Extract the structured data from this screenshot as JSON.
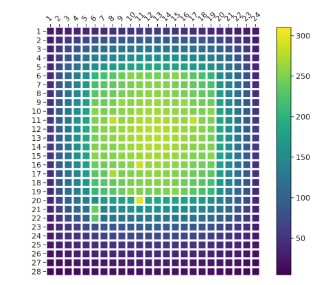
{
  "chart_data": {
    "type": "heatmap",
    "title": "",
    "xlabel": "",
    "ylabel": "",
    "x_categories": [
      "1",
      "2",
      "3",
      "4",
      "5",
      "6",
      "7",
      "8",
      "9",
      "10",
      "11",
      "12",
      "13",
      "14",
      "15",
      "16",
      "17",
      "18",
      "19",
      "20",
      "21",
      "22",
      "23",
      "24"
    ],
    "y_categories": [
      "1",
      "2",
      "3",
      "4",
      "5",
      "6",
      "7",
      "8",
      "9",
      "10",
      "11",
      "12",
      "13",
      "14",
      "15",
      "16",
      "17",
      "18",
      "19",
      "20",
      "21",
      "22",
      "23",
      "24",
      "25",
      "26",
      "27",
      "28"
    ],
    "colorscale": "viridis",
    "color_range": [
      5,
      310
    ],
    "colorbar_ticks": [
      50,
      100,
      150,
      200,
      250,
      300
    ],
    "grid_lines": "white",
    "values": [
      [
        25,
        28,
        31,
        34,
        37,
        40,
        43,
        46,
        49,
        52,
        55,
        58,
        58,
        55,
        52,
        49,
        46,
        43,
        40,
        37,
        34,
        31,
        28,
        25
      ],
      [
        28,
        45,
        55,
        63,
        73,
        82,
        87,
        90,
        92,
        94,
        95,
        96,
        96,
        95,
        94,
        92,
        90,
        87,
        82,
        73,
        63,
        55,
        45,
        28
      ],
      [
        31,
        55,
        75,
        88,
        100,
        110,
        116,
        120,
        123,
        125,
        126,
        127,
        127,
        126,
        125,
        123,
        120,
        116,
        110,
        100,
        88,
        75,
        55,
        31
      ],
      [
        34,
        63,
        88,
        108,
        120,
        135,
        142,
        148,
        152,
        155,
        157,
        158,
        158,
        157,
        155,
        152,
        148,
        142,
        135,
        120,
        108,
        88,
        63,
        34
      ],
      [
        37,
        73,
        100,
        120,
        135,
        155,
        165,
        172,
        178,
        182,
        184,
        185,
        185,
        184,
        182,
        178,
        172,
        165,
        155,
        135,
        120,
        100,
        73,
        37
      ],
      [
        40,
        82,
        110,
        135,
        155,
        205,
        220,
        230,
        240,
        255,
        250,
        245,
        245,
        250,
        255,
        240,
        230,
        220,
        205,
        155,
        135,
        110,
        82,
        40
      ],
      [
        43,
        87,
        116,
        142,
        165,
        220,
        228,
        236,
        243,
        248,
        252,
        254,
        254,
        252,
        248,
        243,
        236,
        228,
        220,
        165,
        142,
        116,
        87,
        43
      ],
      [
        46,
        90,
        120,
        148,
        172,
        230,
        236,
        241,
        247,
        251,
        255,
        258,
        258,
        255,
        251,
        247,
        241,
        236,
        230,
        172,
        148,
        120,
        90,
        46
      ],
      [
        49,
        92,
        123,
        152,
        178,
        240,
        243,
        247,
        262,
        256,
        259,
        262,
        262,
        259,
        256,
        262,
        247,
        243,
        240,
        178,
        152,
        123,
        92,
        49
      ],
      [
        52,
        94,
        125,
        155,
        182,
        255,
        248,
        251,
        256,
        260,
        265,
        267,
        267,
        265,
        260,
        256,
        251,
        248,
        255,
        182,
        155,
        125,
        94,
        52
      ],
      [
        55,
        95,
        126,
        157,
        184,
        250,
        252,
        280,
        259,
        265,
        270,
        272,
        272,
        270,
        265,
        259,
        280,
        252,
        250,
        184,
        157,
        126,
        95,
        55
      ],
      [
        58,
        96,
        127,
        158,
        185,
        245,
        254,
        258,
        262,
        267,
        272,
        275,
        275,
        272,
        267,
        262,
        258,
        254,
        245,
        185,
        158,
        127,
        96,
        58
      ],
      [
        58,
        96,
        127,
        158,
        185,
        245,
        254,
        258,
        262,
        267,
        272,
        275,
        275,
        272,
        267,
        262,
        258,
        254,
        245,
        185,
        158,
        127,
        96,
        58
      ],
      [
        55,
        95,
        126,
        157,
        184,
        250,
        252,
        255,
        259,
        265,
        270,
        272,
        272,
        270,
        265,
        259,
        255,
        252,
        250,
        184,
        157,
        126,
        95,
        55
      ],
      [
        52,
        94,
        125,
        155,
        182,
        255,
        248,
        251,
        256,
        260,
        265,
        267,
        267,
        265,
        260,
        256,
        251,
        248,
        255,
        182,
        155,
        125,
        94,
        52
      ],
      [
        49,
        92,
        123,
        152,
        178,
        240,
        243,
        247,
        252,
        256,
        285,
        262,
        262,
        259,
        256,
        252,
        247,
        243,
        240,
        178,
        152,
        123,
        92,
        49
      ],
      [
        46,
        90,
        120,
        148,
        172,
        230,
        236,
        270,
        247,
        251,
        255,
        258,
        258,
        255,
        251,
        247,
        241,
        236,
        230,
        172,
        148,
        120,
        90,
        46
      ],
      [
        43,
        87,
        116,
        142,
        165,
        220,
        228,
        236,
        243,
        248,
        252,
        254,
        254,
        252,
        248,
        243,
        236,
        228,
        220,
        165,
        142,
        116,
        87,
        43
      ],
      [
        40,
        82,
        110,
        135,
        155,
        205,
        220,
        230,
        240,
        255,
        250,
        245,
        245,
        250,
        255,
        240,
        230,
        220,
        205,
        155,
        135,
        110,
        82,
        40
      ],
      [
        37,
        73,
        100,
        120,
        135,
        155,
        165,
        172,
        178,
        182,
        295,
        185,
        185,
        184,
        182,
        178,
        172,
        165,
        155,
        135,
        120,
        100,
        73,
        37
      ],
      [
        34,
        63,
        88,
        108,
        120,
        240,
        142,
        148,
        152,
        155,
        157,
        158,
        158,
        157,
        155,
        152,
        148,
        142,
        135,
        120,
        108,
        88,
        63,
        34
      ],
      [
        31,
        55,
        75,
        88,
        100,
        230,
        116,
        120,
        123,
        125,
        126,
        127,
        127,
        126,
        125,
        123,
        120,
        116,
        110,
        100,
        88,
        75,
        55,
        31
      ],
      [
        28,
        45,
        55,
        63,
        73,
        82,
        87,
        90,
        92,
        94,
        95,
        96,
        96,
        95,
        94,
        92,
        90,
        87,
        82,
        73,
        63,
        55,
        45,
        28
      ],
      [
        25,
        38,
        45,
        50,
        55,
        60,
        63,
        66,
        68,
        70,
        71,
        72,
        72,
        71,
        70,
        68,
        66,
        63,
        60,
        55,
        50,
        45,
        38,
        25
      ],
      [
        22,
        30,
        36,
        40,
        43,
        46,
        48,
        50,
        51,
        52,
        53,
        54,
        54,
        53,
        52,
        51,
        50,
        48,
        46,
        43,
        40,
        36,
        30,
        22
      ],
      [
        18,
        24,
        28,
        31,
        33,
        35,
        36,
        37,
        38,
        39,
        40,
        40,
        40,
        40,
        39,
        38,
        37,
        36,
        35,
        33,
        31,
        28,
        24,
        18
      ],
      [
        14,
        18,
        21,
        23,
        24,
        25,
        26,
        27,
        28,
        28,
        29,
        29,
        29,
        29,
        28,
        28,
        27,
        26,
        25,
        24,
        23,
        21,
        18,
        14
      ],
      [
        10,
        12,
        14,
        15,
        16,
        17,
        17,
        18,
        18,
        18,
        19,
        19,
        19,
        19,
        18,
        18,
        18,
        17,
        17,
        16,
        15,
        14,
        12,
        10
      ]
    ]
  }
}
